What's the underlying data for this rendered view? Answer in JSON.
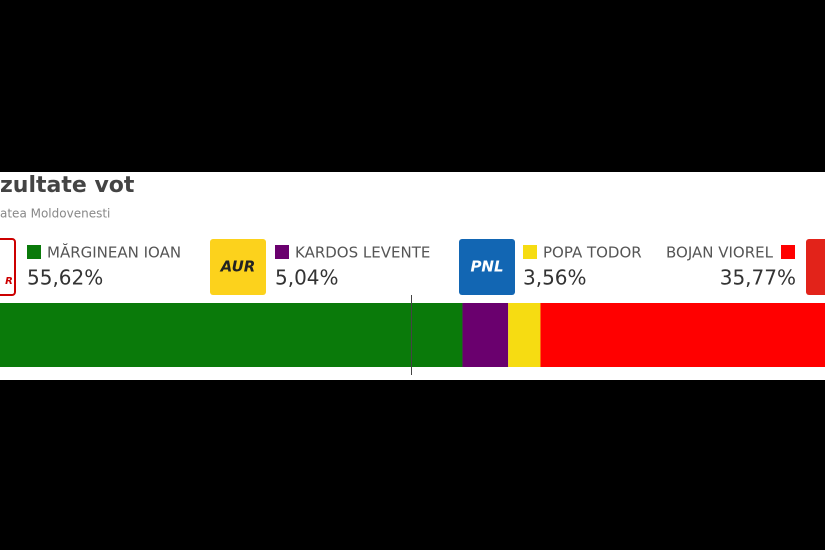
{
  "chart_data": {
    "type": "stacked-bar",
    "title": "zultate vot",
    "subtitle": "atea Moldovenesti",
    "xlim": [
      0,
      100
    ],
    "reference_line": 50,
    "series": [
      {
        "name": "MĂRGINEAN IOAN",
        "color": "#0a7a0a",
        "values": [
          55.62
        ],
        "value_labels": [
          "55,62%"
        ],
        "logo": "R",
        "logo_color": "#ffffff"
      },
      {
        "name": "KARDOS LEVENTE",
        "color": "#6a006e",
        "values": [
          5.04
        ],
        "value_labels": [
          "5,04%"
        ],
        "logo": "AUR",
        "logo_color": "#fcd21c"
      },
      {
        "name": "POPA TODOR",
        "color": "#f6dc12",
        "values": [
          3.56
        ],
        "value_labels": [
          "3,56%"
        ],
        "logo": "PNL",
        "logo_color": "#1266b3"
      },
      {
        "name": "BOJAN VIOREL",
        "color": "#ff0000",
        "values": [
          35.77
        ],
        "value_labels": [
          "35,77%"
        ],
        "logo": "P",
        "logo_color": "#e2231a"
      }
    ]
  }
}
